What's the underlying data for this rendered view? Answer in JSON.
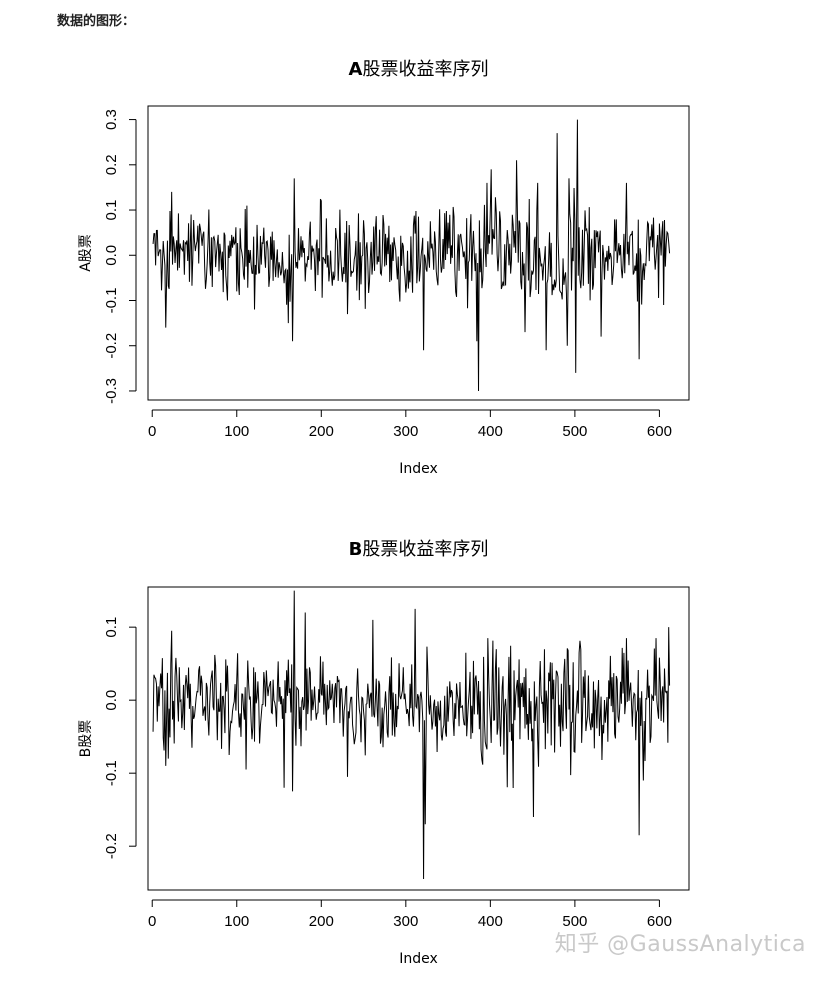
{
  "heading": "数据的图形：",
  "watermark": "知乎 @GaussAnalytica",
  "chart_data": [
    {
      "type": "line",
      "title_bold": "A",
      "title_rest": "股票收益率序列",
      "xlabel": "Index",
      "ylabel": "A股票",
      "xlim": [
        -5,
        635
      ],
      "ylim": [
        -0.32,
        0.33
      ],
      "xticks": [
        0,
        100,
        200,
        300,
        400,
        500,
        600
      ],
      "yticks": [
        -0.3,
        -0.2,
        -0.1,
        0.0,
        0.1,
        0.2,
        0.3
      ],
      "ytick_labels": [
        "-0.3",
        "-0.2",
        "-0.1",
        "0.0",
        "0.1",
        "0.2",
        "0.3"
      ],
      "n": 612,
      "spread": 0.045,
      "spikes": [
        [
          15,
          -0.16
        ],
        [
          22,
          0.14
        ],
        [
          45,
          0.09
        ],
        [
          120,
          -0.12
        ],
        [
          160,
          -0.15
        ],
        [
          165,
          -0.19
        ],
        [
          167,
          0.17
        ],
        [
          230,
          -0.13
        ],
        [
          320,
          -0.21
        ],
        [
          383,
          -0.19
        ],
        [
          385,
          -0.3
        ],
        [
          395,
          0.16
        ],
        [
          430,
          0.21
        ],
        [
          440,
          -0.17
        ],
        [
          465,
          -0.21
        ],
        [
          478,
          0.27
        ],
        [
          490,
          -0.2
        ],
        [
          500,
          -0.26
        ],
        [
          502,
          0.3
        ],
        [
          530,
          -0.18
        ],
        [
          560,
          0.16
        ],
        [
          575,
          -0.23
        ],
        [
          400,
          0.19
        ],
        [
          455,
          0.16
        ]
      ]
    },
    {
      "type": "line",
      "title_bold": "B",
      "title_rest": "股票收益率序列",
      "xlabel": "Index",
      "ylabel": "B股票",
      "xlim": [
        -5,
        635
      ],
      "ylim": [
        -0.26,
        0.155
      ],
      "xticks": [
        0,
        100,
        200,
        300,
        400,
        500,
        600
      ],
      "yticks": [
        -0.2,
        -0.1,
        0.0,
        0.1
      ],
      "ytick_labels": [
        "-0.2",
        "-0.1",
        "0.0",
        "0.1"
      ],
      "n": 612,
      "spread": 0.032,
      "spikes": [
        [
          15,
          -0.09
        ],
        [
          22,
          0.095
        ],
        [
          110,
          -0.095
        ],
        [
          155,
          -0.12
        ],
        [
          165,
          -0.125
        ],
        [
          167,
          0.15
        ],
        [
          180,
          0.12
        ],
        [
          230,
          -0.105
        ],
        [
          260,
          0.11
        ],
        [
          310,
          0.125
        ],
        [
          320,
          -0.245
        ],
        [
          322,
          -0.17
        ],
        [
          370,
          0.065
        ],
        [
          450,
          -0.16
        ],
        [
          560,
          0.085
        ],
        [
          575,
          -0.185
        ],
        [
          580,
          -0.11
        ],
        [
          595,
          0.085
        ],
        [
          610,
          0.1
        ]
      ]
    }
  ]
}
